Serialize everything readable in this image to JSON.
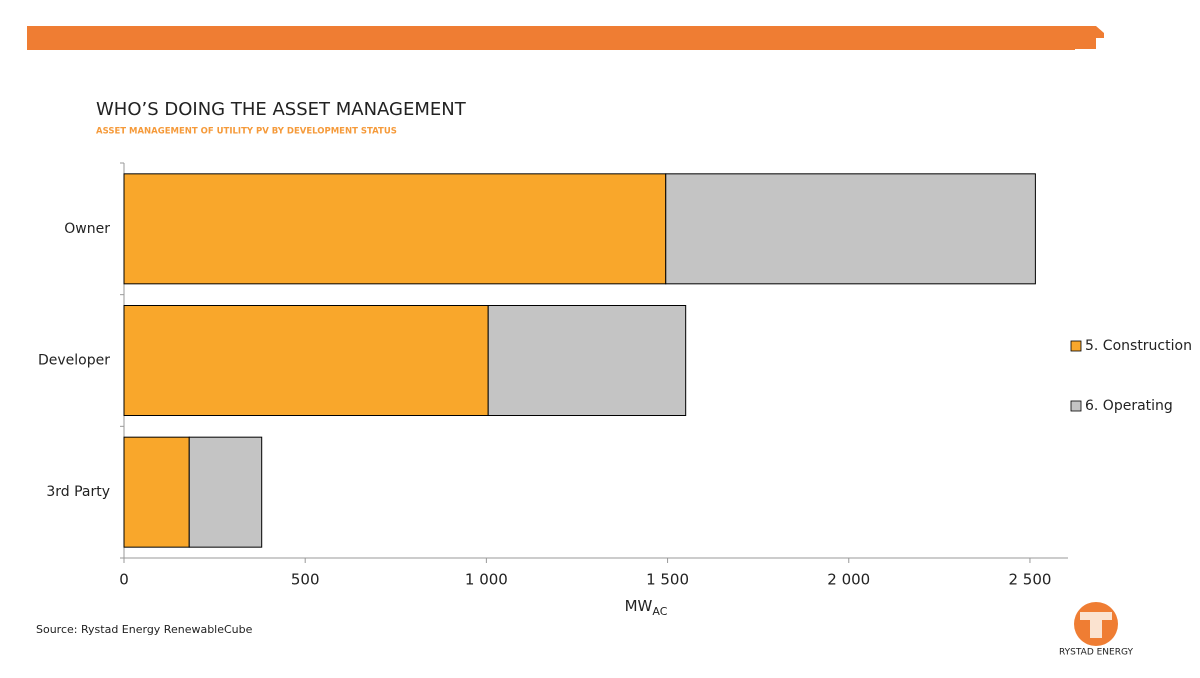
{
  "chart_data": {
    "type": "stacked-hbar",
    "title": "WHO’S DOING THE ASSET MANAGEMENT",
    "subtitle": "ASSET MANAGEMENT OF UTILITY PV BY DEVELOPMENT STATUS",
    "categories": [
      "Owner",
      "Developer",
      "3rd Party"
    ],
    "series": [
      {
        "name": "5. Construction",
        "color": "#F9A72B",
        "values": [
          1495,
          1005,
          180
        ]
      },
      {
        "name": "6. Operating",
        "color": "#C4C4C4",
        "values": [
          1020,
          545,
          200
        ]
      }
    ],
    "xlim": [
      0,
      2605
    ],
    "xticks": [
      0,
      500,
      {
        "value": 1000,
        "label": "1 000"
      },
      {
        "value": 1500,
        "label": "1 500"
      },
      {
        "value": 2000,
        "label": "2 000"
      },
      {
        "value": 2500,
        "label": "2 500"
      }
    ],
    "x_label": "MW",
    "x_label_sub": "AC",
    "legend": "right",
    "source": "Source: Rystad Energy RenewableCube",
    "logo_text": "RYSTAD ENERGY"
  }
}
